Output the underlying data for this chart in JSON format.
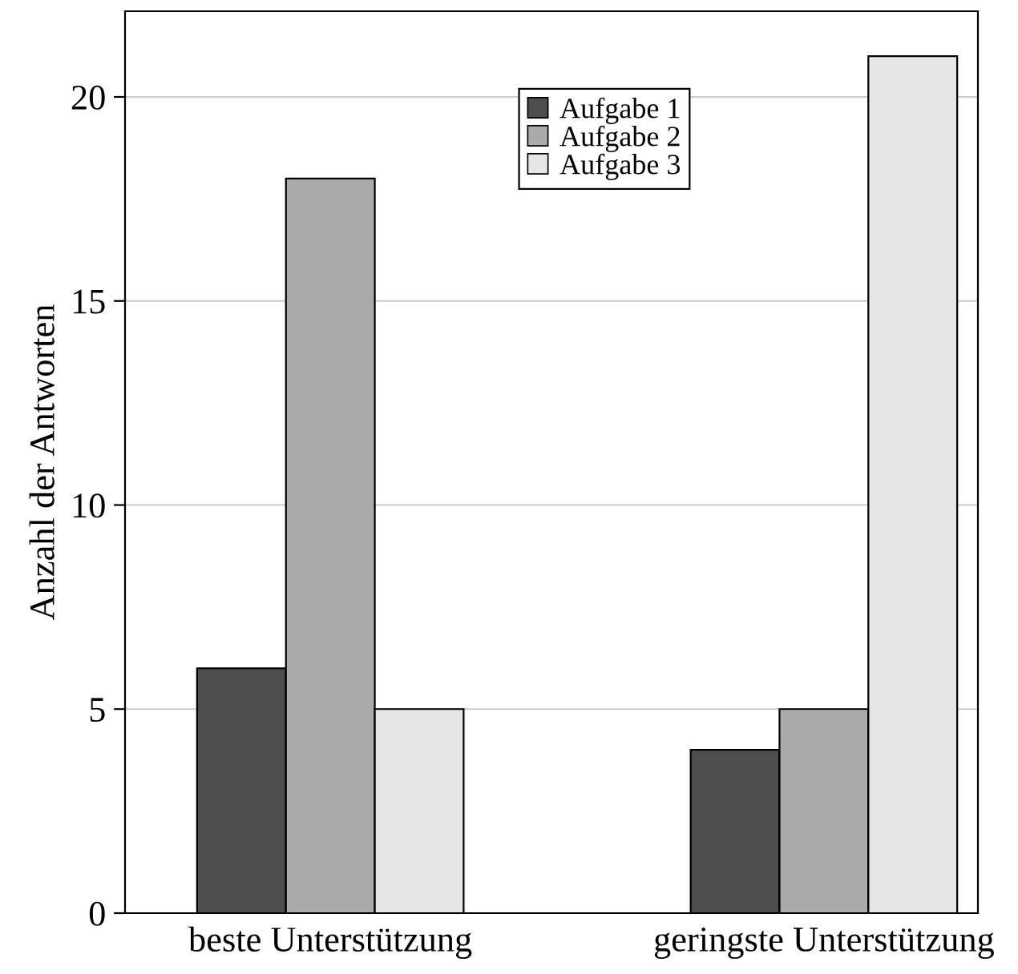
{
  "chart_data": {
    "type": "bar",
    "ylabel": "Anzahl der Antworten",
    "categories": [
      "beste Unterstützung",
      "geringste Unterstützung"
    ],
    "series": [
      {
        "name": "Aufgabe 1",
        "color": "#4d4d4d",
        "values": [
          6,
          4
        ]
      },
      {
        "name": "Aufgabe 2",
        "color": "#ababab",
        "values": [
          18,
          5
        ]
      },
      {
        "name": "Aufgabe 3",
        "color": "#e6e6e6",
        "values": [
          5,
          21
        ]
      }
    ],
    "ylim": [
      0,
      22.1
    ],
    "yticks": [
      0,
      5,
      10,
      15,
      20
    ],
    "grid": "y",
    "legend": "top"
  }
}
